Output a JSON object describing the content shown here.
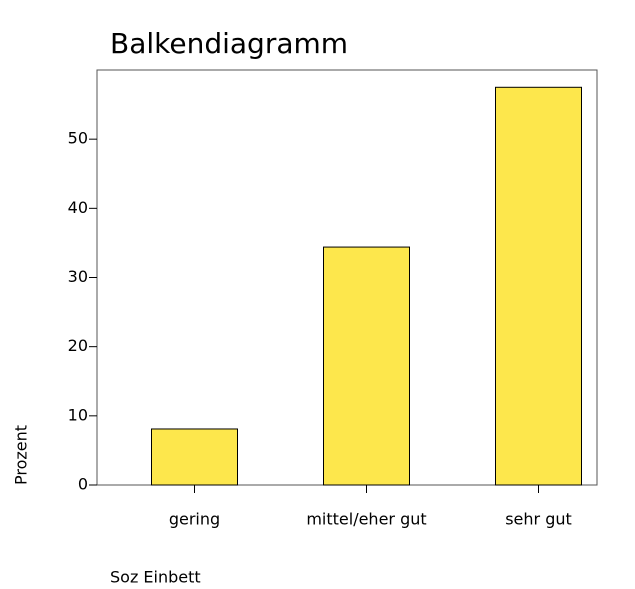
{
  "chart_data": {
    "type": "bar",
    "title": "Balkendiagramm",
    "x_label": "Soz Einbett",
    "y_label": "Prozent",
    "categories": [
      "gering",
      "mittel/eher gut",
      "sehr gut"
    ],
    "values": [
      8.1,
      34.4,
      57.5
    ],
    "color": "#fde74c",
    "ylim": [
      0,
      60
    ],
    "yticks": [
      0,
      10,
      20,
      30,
      40,
      50
    ],
    "grid": false
  }
}
